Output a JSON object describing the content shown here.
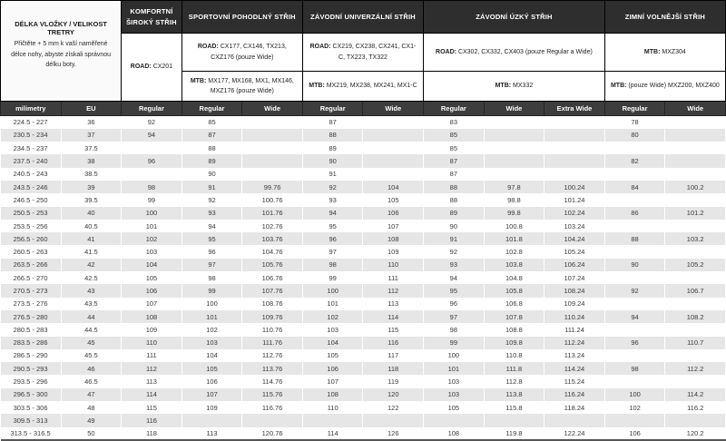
{
  "colors": {
    "section_header_bg": "#2e2e2e",
    "column_header_bg": "#3d3d3d",
    "stripe_bg": "#e6e6e6",
    "text_dark": "#3a3a3a",
    "border_black": "#000000"
  },
  "chart_data": {
    "type": "table",
    "info": {
      "title": "DÉLKA VLOŽKY / VELIKOST TRETRY",
      "note": "Přičtěte + 5 mm k vaší naměřené délce nohy, abyste získali správnou délku boty."
    },
    "sections": [
      {
        "title": "KOMFORTNÍ ŠIROKÝ STŘIH",
        "road_label": "ROAD:",
        "road_models": "CX201"
      },
      {
        "title": "SPORTOVNÍ POHODLNÝ STŘIH",
        "road_label": "ROAD:",
        "road_models": "CX177, CX146, TX213, CXZ176 (pouze Wide)",
        "mtb_label": "MTB:",
        "mtb_models": "MX177, MX168, MX1, MX146, MXZ176 (pouze Wide)"
      },
      {
        "title": "ZÁVODNÍ UNIVERZÁLNÍ STŘIH",
        "road_label": "ROAD:",
        "road_models": "CX219, CX238, CX241, CX1-C, TX223, TX322",
        "mtb_label": "MTB:",
        "mtb_models": "MX219, MX238, MX241, MX1-C"
      },
      {
        "title": "ZÁVODNÍ ÚZKÝ STŘIH",
        "road_label": "ROAD:",
        "road_models": "CX302, CX332, CX403 (pouze Regular a Wide)",
        "mtb_label": "MTB:",
        "mtb_models": "MX332"
      },
      {
        "title": "ZIMNÍ VOLNĚJŠÍ STŘIH",
        "road_label": "MTB:",
        "road_models": "MXZ304",
        "mtb_label": "MTB:",
        "mtb_models": "(pouze Wide) MXZ200, MXZ400"
      }
    ],
    "columns": [
      "milimetry",
      "EU",
      "Regular",
      "Regular",
      "Wide",
      "Regular",
      "Wide",
      "Regular",
      "Wide",
      "Extra Wide",
      "Regular",
      "Wide"
    ],
    "rows": [
      [
        "224.5 - 227",
        "36",
        "92",
        "85",
        "",
        "87",
        "",
        "83",
        "",
        "",
        "78",
        ""
      ],
      [
        "230.5 - 234",
        "37",
        "94",
        "87",
        "",
        "88",
        "",
        "85",
        "",
        "",
        "80",
        ""
      ],
      [
        "234.5 - 237",
        "37.5",
        "",
        "88",
        "",
        "89",
        "",
        "85",
        "",
        "",
        "",
        ""
      ],
      [
        "237.5 - 240",
        "38",
        "96",
        "89",
        "",
        "90",
        "",
        "87",
        "",
        "",
        "82",
        ""
      ],
      [
        "240.5 - 243",
        "38.5",
        "",
        "90",
        "",
        "91",
        "",
        "87",
        "",
        "",
        "",
        ""
      ],
      [
        "243.5 - 246",
        "39",
        "98",
        "91",
        "99.76",
        "92",
        "104",
        "88",
        "97.8",
        "100.24",
        "84",
        "100.2"
      ],
      [
        "246.5 - 250",
        "39.5",
        "99",
        "92",
        "100.76",
        "93",
        "105",
        "88",
        "98.8",
        "101.24",
        "",
        ""
      ],
      [
        "250.5 - 253",
        "40",
        "100",
        "93",
        "101.76",
        "94",
        "106",
        "89",
        "99.8",
        "102.24",
        "86",
        "101.2"
      ],
      [
        "253.5 - 256",
        "40.5",
        "101",
        "94",
        "102.76",
        "95",
        "107",
        "90",
        "100.8",
        "103.24",
        "",
        ""
      ],
      [
        "256.5 - 260",
        "41",
        "102",
        "95",
        "103.76",
        "96",
        "108",
        "91",
        "101.8",
        "104.24",
        "88",
        "103.2"
      ],
      [
        "260.5 - 263",
        "41.5",
        "103",
        "96",
        "104.76",
        "97",
        "109",
        "92",
        "102.8",
        "105.24",
        "",
        ""
      ],
      [
        "263.5 - 266",
        "42",
        "104",
        "97",
        "105.76",
        "98",
        "110",
        "93",
        "103.8",
        "106.24",
        "90",
        "105.2"
      ],
      [
        "266.5 - 270",
        "42.5",
        "105",
        "98",
        "106.76",
        "99",
        "111",
        "94",
        "104.8",
        "107.24",
        "",
        ""
      ],
      [
        "270.5 - 273",
        "43",
        "106",
        "99",
        "107.76",
        "100",
        "112",
        "95",
        "105.8",
        "108.24",
        "92",
        "106.7"
      ],
      [
        "273.5 - 276",
        "43.5",
        "107",
        "100",
        "108.76",
        "101",
        "113",
        "96",
        "106.8",
        "109.24",
        "",
        ""
      ],
      [
        "276.5 - 280",
        "44",
        "108",
        "101",
        "109.76",
        "102",
        "114",
        "97",
        "107.8",
        "110.24",
        "94",
        "108.2"
      ],
      [
        "280.5 - 283",
        "44.5",
        "109",
        "102",
        "110.76",
        "103",
        "115",
        "98",
        "108.8",
        "111.24",
        "",
        ""
      ],
      [
        "283.5 - 286",
        "45",
        "110",
        "103",
        "111.76",
        "104",
        "116",
        "99",
        "109.8",
        "112.24",
        "96",
        "110.7"
      ],
      [
        "286.5 - 290",
        "45.5",
        "111",
        "104",
        "112.76",
        "105",
        "117",
        "100",
        "110.8",
        "113.24",
        "",
        ""
      ],
      [
        "290.5 - 293",
        "46",
        "112",
        "105",
        "113.76",
        "106",
        "118",
        "101",
        "111.8",
        "114.24",
        "98",
        "112.2"
      ],
      [
        "293.5 - 296",
        "46.5",
        "113",
        "106",
        "114.76",
        "107",
        "119",
        "103",
        "112.8",
        "115.24",
        "",
        ""
      ],
      [
        "296.5 - 300",
        "47",
        "114",
        "107",
        "115.76",
        "108",
        "120",
        "103",
        "113.8",
        "116.24",
        "100",
        "114.2"
      ],
      [
        "303.5 - 306",
        "48",
        "115",
        "109",
        "116.76",
        "110",
        "122",
        "105",
        "115.8",
        "118.24",
        "102",
        "116.2"
      ],
      [
        "309.5 - 313",
        "49",
        "116",
        "",
        "",
        "",
        "",
        "",
        "",
        "",
        "",
        ""
      ],
      [
        "313.5 - 316.5",
        "50",
        "118",
        "113",
        "120.76",
        "114",
        "126",
        "108",
        "119.8",
        "122.24",
        "106",
        "120.2"
      ]
    ]
  }
}
